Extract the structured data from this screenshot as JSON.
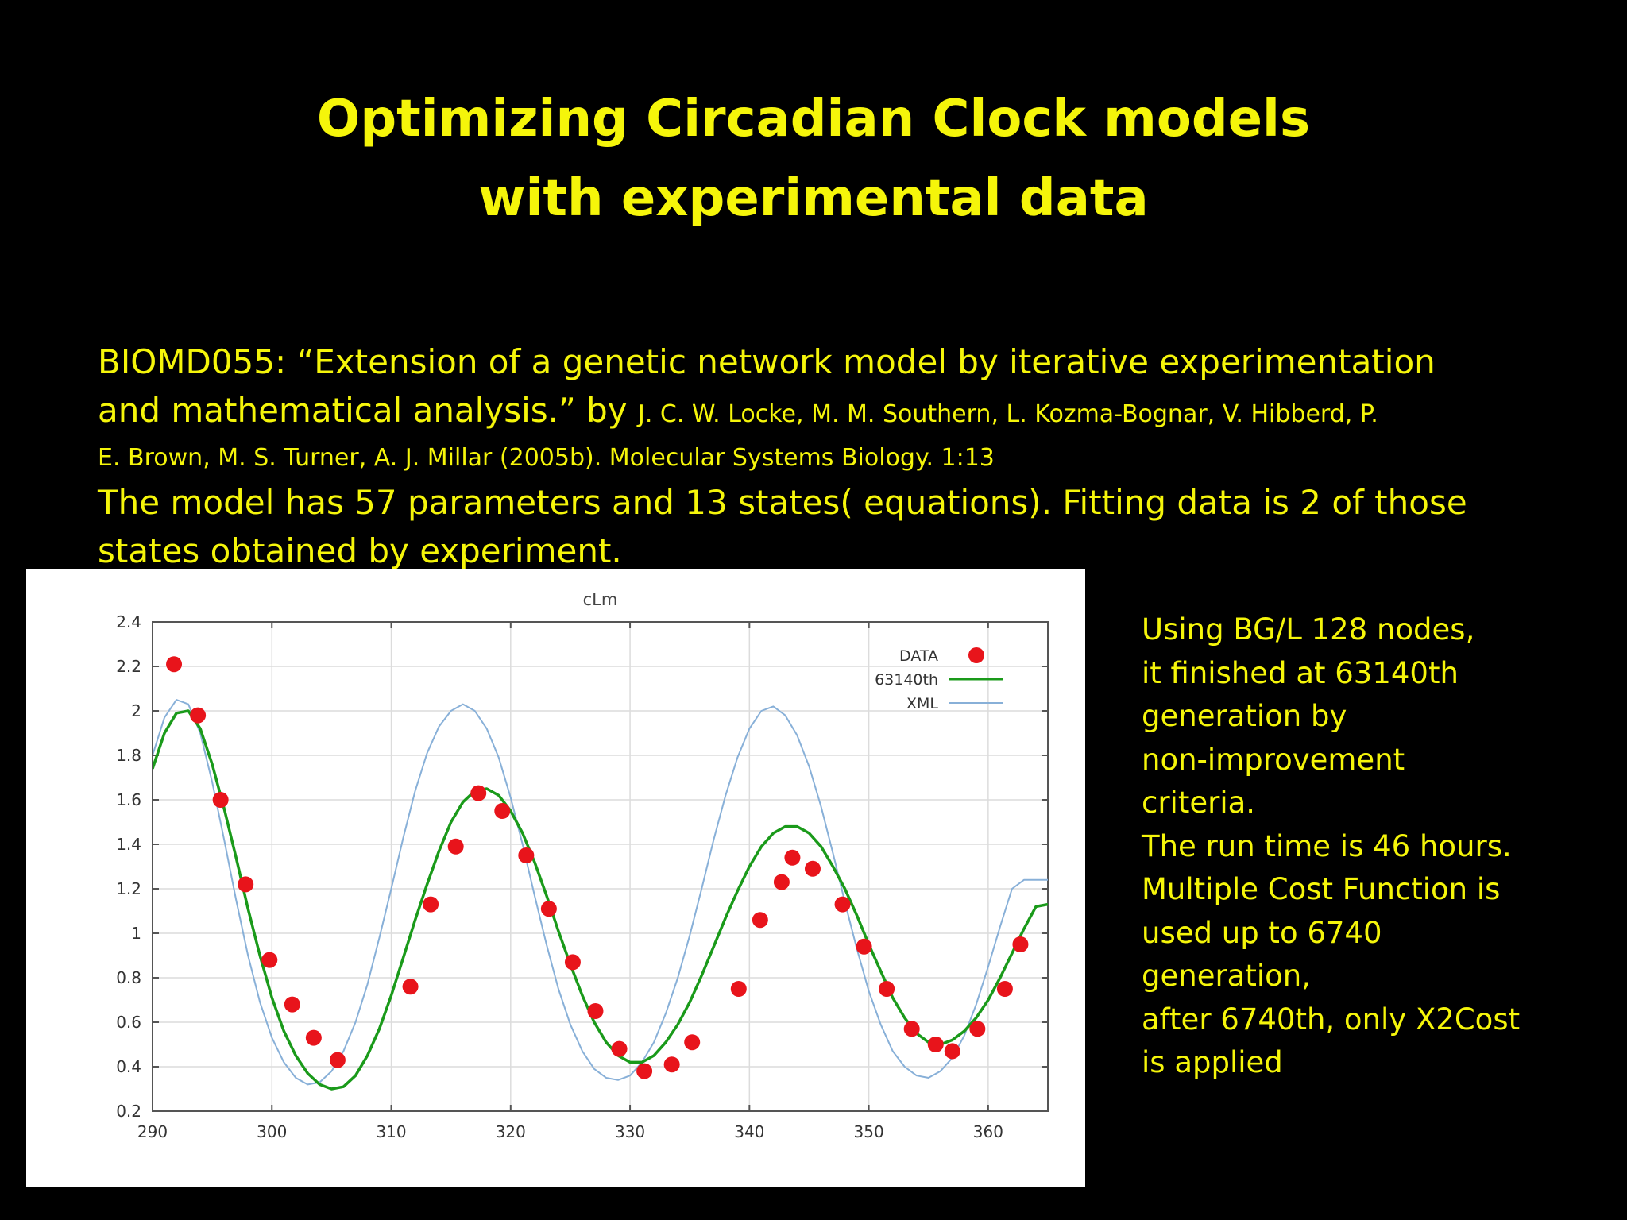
{
  "slide": {
    "title_line1": "Optimizing Circadian Clock models",
    "title_line2": "with experimental data",
    "ref_line1": "BIOMD055: “Extension of a genetic network model by iterative experimentation",
    "ref_line2_big": "and mathematical analysis.” by",
    "ref_line2_small": "J. C. W. Locke, M. M. Southern, L. Kozma-Bognar, V. Hibberd, P.",
    "ref_line3": "E. Brown, M. S. Turner, A. J. Millar (2005b). Molecular Systems Biology. 1:13",
    "model_line1": "The model has 57 parameters and 13 states( equations). Fitting data is 2 of those",
    "model_line2": "states obtained by experiment.",
    "side_lines": [
      "Using BG/L 128 nodes,",
      " it finished at 63140th",
      "generation by",
      "non-improvement",
      "criteria.",
      "The run time is 46 hours.",
      "Multiple Cost Function is",
      "used up to 6740",
      "generation,",
      "after 6740th, only X2Cost",
      "is applied"
    ],
    "text_color": "#f5f50a",
    "background": "#000000"
  },
  "chart_data": {
    "type": "line",
    "title": "cLm",
    "xlabel": "",
    "ylabel": "",
    "xlim": [
      290,
      365
    ],
    "ylim": [
      0.2,
      2.4
    ],
    "x_ticks": [
      290,
      300,
      310,
      320,
      330,
      340,
      350,
      360
    ],
    "y_ticks": [
      0.2,
      0.4,
      0.6,
      0.8,
      1,
      1.2,
      1.4,
      1.6,
      1.8,
      2,
      2.2,
      2.4
    ],
    "x_tick_labels": [
      "290",
      "300",
      "310",
      "320",
      "330",
      "340",
      "350",
      "360"
    ],
    "y_tick_labels": [
      "0.2",
      "0.4",
      "0.6",
      "0.8",
      "1",
      "1.2",
      "1.4",
      "1.6",
      "1.8",
      "2",
      "2.2",
      "2.4"
    ],
    "grid": true,
    "legend_position": "top-right",
    "series": [
      {
        "name": "DATA",
        "kind": "scatter",
        "color": "#e8141b",
        "points": [
          [
            291.8,
            2.21
          ],
          [
            293.8,
            1.98
          ],
          [
            295.7,
            1.6
          ],
          [
            297.8,
            1.22
          ],
          [
            299.8,
            0.88
          ],
          [
            301.7,
            0.68
          ],
          [
            303.5,
            0.53
          ],
          [
            305.5,
            0.43
          ],
          [
            311.6,
            0.76
          ],
          [
            313.3,
            1.13
          ],
          [
            315.4,
            1.39
          ],
          [
            317.3,
            1.63
          ],
          [
            319.3,
            1.55
          ],
          [
            321.3,
            1.35
          ],
          [
            323.2,
            1.11
          ],
          [
            325.2,
            0.87
          ],
          [
            327.1,
            0.65
          ],
          [
            329.1,
            0.48
          ],
          [
            331.2,
            0.38
          ],
          [
            333.5,
            0.41
          ],
          [
            335.2,
            0.51
          ],
          [
            339.1,
            0.75
          ],
          [
            340.9,
            1.06
          ],
          [
            342.7,
            1.23
          ],
          [
            343.6,
            1.34
          ],
          [
            345.3,
            1.29
          ],
          [
            347.8,
            1.13
          ],
          [
            349.6,
            0.94
          ],
          [
            351.5,
            0.75
          ],
          [
            353.6,
            0.57
          ],
          [
            355.6,
            0.5
          ],
          [
            357.0,
            0.47
          ],
          [
            359.1,
            0.57
          ],
          [
            361.4,
            0.75
          ],
          [
            362.7,
            0.95
          ]
        ]
      },
      {
        "name": "63140th",
        "kind": "line",
        "color": "#1a9a1a",
        "points": [
          [
            290,
            1.74
          ],
          [
            291,
            1.9
          ],
          [
            292,
            1.99
          ],
          [
            293,
            2.0
          ],
          [
            294,
            1.92
          ],
          [
            295,
            1.76
          ],
          [
            296,
            1.56
          ],
          [
            297,
            1.34
          ],
          [
            298,
            1.11
          ],
          [
            299,
            0.9
          ],
          [
            300,
            0.71
          ],
          [
            301,
            0.56
          ],
          [
            302,
            0.45
          ],
          [
            303,
            0.37
          ],
          [
            304,
            0.32
          ],
          [
            305,
            0.3
          ],
          [
            306,
            0.31
          ],
          [
            307,
            0.36
          ],
          [
            308,
            0.45
          ],
          [
            309,
            0.57
          ],
          [
            310,
            0.72
          ],
          [
            311,
            0.89
          ],
          [
            312,
            1.06
          ],
          [
            313,
            1.22
          ],
          [
            314,
            1.37
          ],
          [
            315,
            1.5
          ],
          [
            316,
            1.59
          ],
          [
            317,
            1.64
          ],
          [
            318,
            1.65
          ],
          [
            319,
            1.62
          ],
          [
            320,
            1.55
          ],
          [
            321,
            1.45
          ],
          [
            322,
            1.32
          ],
          [
            323,
            1.17
          ],
          [
            324,
            1.01
          ],
          [
            325,
            0.86
          ],
          [
            326,
            0.72
          ],
          [
            327,
            0.6
          ],
          [
            328,
            0.51
          ],
          [
            329,
            0.45
          ],
          [
            330,
            0.42
          ],
          [
            331,
            0.42
          ],
          [
            332,
            0.45
          ],
          [
            333,
            0.51
          ],
          [
            334,
            0.59
          ],
          [
            335,
            0.69
          ],
          [
            336,
            0.81
          ],
          [
            337,
            0.94
          ],
          [
            338,
            1.07
          ],
          [
            339,
            1.19
          ],
          [
            340,
            1.3
          ],
          [
            341,
            1.39
          ],
          [
            342,
            1.45
          ],
          [
            343,
            1.48
          ],
          [
            344,
            1.48
          ],
          [
            345,
            1.45
          ],
          [
            346,
            1.39
          ],
          [
            347,
            1.3
          ],
          [
            348,
            1.2
          ],
          [
            349,
            1.08
          ],
          [
            350,
            0.95
          ],
          [
            351,
            0.83
          ],
          [
            352,
            0.71
          ],
          [
            353,
            0.62
          ],
          [
            354,
            0.55
          ],
          [
            355,
            0.51
          ],
          [
            356,
            0.5
          ],
          [
            357,
            0.52
          ],
          [
            358,
            0.56
          ],
          [
            359,
            0.62
          ],
          [
            360,
            0.7
          ],
          [
            361,
            0.8
          ],
          [
            362,
            0.91
          ],
          [
            363,
            1.02
          ],
          [
            364,
            1.12
          ],
          [
            365,
            1.13
          ]
        ]
      },
      {
        "name": "XML",
        "kind": "line",
        "color": "#88b0d8",
        "points": [
          [
            290,
            1.8
          ],
          [
            291,
            1.97
          ],
          [
            292,
            2.05
          ],
          [
            293,
            2.03
          ],
          [
            294,
            1.9
          ],
          [
            295,
            1.68
          ],
          [
            296,
            1.42
          ],
          [
            297,
            1.15
          ],
          [
            298,
            0.9
          ],
          [
            299,
            0.69
          ],
          [
            300,
            0.53
          ],
          [
            301,
            0.42
          ],
          [
            302,
            0.35
          ],
          [
            303,
            0.32
          ],
          [
            304,
            0.33
          ],
          [
            305,
            0.38
          ],
          [
            306,
            0.47
          ],
          [
            307,
            0.6
          ],
          [
            308,
            0.77
          ],
          [
            309,
            0.98
          ],
          [
            310,
            1.2
          ],
          [
            311,
            1.43
          ],
          [
            312,
            1.64
          ],
          [
            313,
            1.81
          ],
          [
            314,
            1.93
          ],
          [
            315,
            2.0
          ],
          [
            316,
            2.03
          ],
          [
            317,
            2.0
          ],
          [
            318,
            1.92
          ],
          [
            319,
            1.79
          ],
          [
            320,
            1.61
          ],
          [
            321,
            1.4
          ],
          [
            322,
            1.17
          ],
          [
            323,
            0.95
          ],
          [
            324,
            0.75
          ],
          [
            325,
            0.59
          ],
          [
            326,
            0.47
          ],
          [
            327,
            0.39
          ],
          [
            328,
            0.35
          ],
          [
            329,
            0.34
          ],
          [
            330,
            0.36
          ],
          [
            331,
            0.42
          ],
          [
            332,
            0.51
          ],
          [
            333,
            0.64
          ],
          [
            334,
            0.8
          ],
          [
            335,
            0.99
          ],
          [
            336,
            1.2
          ],
          [
            337,
            1.42
          ],
          [
            338,
            1.62
          ],
          [
            339,
            1.79
          ],
          [
            340,
            1.92
          ],
          [
            341,
            2.0
          ],
          [
            342,
            2.02
          ],
          [
            343,
            1.98
          ],
          [
            344,
            1.89
          ],
          [
            345,
            1.75
          ],
          [
            346,
            1.57
          ],
          [
            347,
            1.36
          ],
          [
            348,
            1.14
          ],
          [
            349,
            0.93
          ],
          [
            350,
            0.74
          ],
          [
            351,
            0.59
          ],
          [
            352,
            0.47
          ],
          [
            353,
            0.4
          ],
          [
            354,
            0.36
          ],
          [
            355,
            0.35
          ],
          [
            356,
            0.38
          ],
          [
            357,
            0.44
          ],
          [
            358,
            0.54
          ],
          [
            359,
            0.68
          ],
          [
            360,
            0.85
          ],
          [
            361,
            1.03
          ],
          [
            362,
            1.2
          ],
          [
            363,
            1.24
          ],
          [
            364,
            1.24
          ],
          [
            365,
            1.24
          ]
        ]
      }
    ]
  }
}
